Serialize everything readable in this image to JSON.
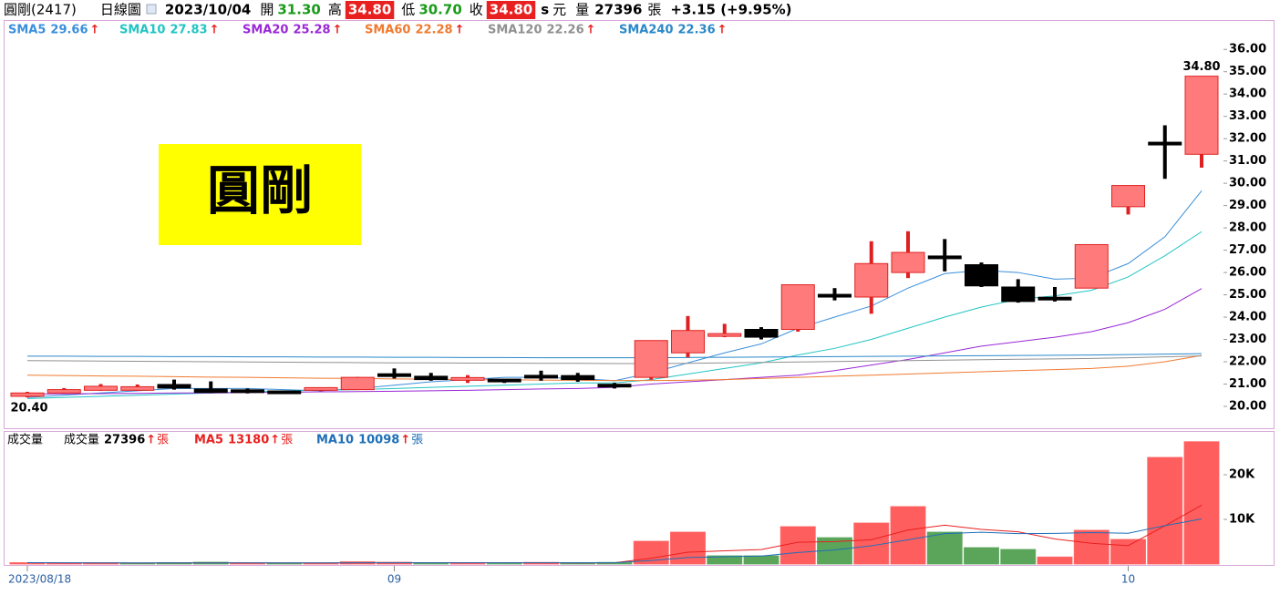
{
  "header": {
    "name": "圓剛(2417)",
    "period": "日線圖",
    "date": "2023/10/04",
    "open_label": "開",
    "open": "31.30",
    "high_label": "高",
    "high": "34.80",
    "low_label": "低",
    "low": "30.70",
    "close_label": "收",
    "close": "34.80",
    "currency_mark": "s",
    "currency": "元",
    "volume_label": "量",
    "volume": "27396",
    "volume_unit": "張",
    "change": "+3.15 (+9.95%)"
  },
  "chart_data": [
    {
      "type": "candlestick",
      "up_color": "#ff7b7b",
      "up_border": "#e02020",
      "down_color": "#000000",
      "trend_marker": "↑",
      "stamp": "圓剛",
      "open": [
        20.45,
        20.6,
        20.72,
        20.72,
        20.98,
        20.78,
        20.7,
        20.65,
        20.7,
        20.75,
        21.42,
        21.35,
        21.2,
        21.18,
        21.35,
        21.38,
        20.95,
        21.3,
        22.4,
        23.12,
        23.45,
        23.45,
        24.98,
        24.9,
        26.0,
        26.7,
        26.35,
        25.35,
        24.85,
        25.3,
        28.95,
        31.8,
        31.3
      ],
      "high": [
        20.65,
        20.82,
        21.0,
        20.98,
        21.2,
        21.12,
        20.8,
        20.68,
        20.84,
        21.32,
        21.7,
        21.5,
        21.4,
        21.2,
        21.6,
        21.5,
        21.05,
        22.95,
        24.05,
        23.7,
        23.55,
        25.45,
        25.3,
        27.4,
        27.85,
        27.5,
        26.45,
        25.7,
        25.35,
        27.25,
        29.9,
        32.6,
        34.8
      ],
      "low": [
        20.4,
        20.58,
        20.7,
        20.7,
        20.75,
        20.6,
        20.58,
        20.6,
        20.68,
        20.74,
        21.25,
        21.15,
        21.05,
        21.05,
        21.15,
        21.1,
        20.8,
        21.2,
        22.2,
        23.1,
        23.0,
        23.35,
        24.75,
        24.15,
        25.75,
        26.05,
        25.35,
        24.65,
        24.7,
        25.3,
        28.6,
        30.2,
        30.7
      ],
      "close": [
        20.6,
        20.75,
        20.9,
        20.88,
        20.82,
        20.62,
        20.65,
        20.63,
        20.8,
        21.3,
        21.32,
        21.2,
        21.25,
        21.08,
        21.28,
        21.2,
        20.88,
        22.95,
        23.4,
        23.22,
        23.1,
        25.45,
        24.95,
        26.4,
        26.9,
        26.65,
        25.4,
        24.7,
        24.8,
        27.25,
        29.9,
        31.75,
        34.8
      ],
      "series": [
        {
          "name": "SMA5",
          "color": "#3a8fdc",
          "values": [
            20.4,
            20.5,
            20.6,
            20.7,
            20.8,
            20.8,
            20.8,
            20.75,
            20.7,
            20.8,
            20.95,
            21.1,
            21.2,
            21.3,
            21.3,
            21.25,
            21.15,
            21.5,
            21.95,
            22.4,
            22.8,
            23.5,
            24.0,
            24.5,
            25.3,
            25.95,
            26.1,
            26.0,
            25.7,
            25.75,
            26.4,
            27.6,
            29.66
          ]
        },
        {
          "name": "SMA10",
          "color": "#22c4c4",
          "values": [
            20.35,
            20.4,
            20.45,
            20.5,
            20.55,
            20.6,
            20.65,
            20.7,
            20.72,
            20.75,
            20.8,
            20.85,
            20.9,
            20.95,
            21.0,
            21.05,
            21.05,
            21.2,
            21.45,
            21.7,
            21.95,
            22.3,
            22.6,
            23.0,
            23.5,
            24.0,
            24.45,
            24.8,
            24.95,
            25.2,
            25.8,
            26.75,
            27.83
          ]
        },
        {
          "name": "SMA20",
          "color": "#9a28d6",
          "values": [
            20.55,
            20.56,
            20.57,
            20.58,
            20.6,
            20.6,
            20.62,
            20.63,
            20.65,
            20.66,
            20.68,
            20.7,
            20.72,
            20.75,
            20.78,
            20.8,
            20.85,
            21.0,
            21.1,
            21.2,
            21.3,
            21.4,
            21.6,
            21.85,
            22.1,
            22.4,
            22.7,
            22.9,
            23.1,
            23.35,
            23.75,
            24.35,
            25.28
          ]
        },
        {
          "name": "SMA60",
          "color": "#f07a30",
          "values": [
            21.4,
            21.38,
            21.36,
            21.35,
            21.33,
            21.31,
            21.3,
            21.28,
            21.26,
            21.25,
            21.23,
            21.22,
            21.2,
            21.19,
            21.18,
            21.17,
            21.16,
            21.16,
            21.17,
            21.2,
            21.25,
            21.3,
            21.35,
            21.4,
            21.45,
            21.5,
            21.55,
            21.6,
            21.65,
            21.7,
            21.8,
            22.0,
            22.28
          ]
        },
        {
          "name": "SMA120",
          "color": "#909090",
          "values": [
            22.05,
            22.04,
            22.03,
            22.02,
            22.01,
            22.0,
            21.99,
            21.98,
            21.97,
            21.96,
            21.95,
            21.95,
            21.94,
            21.94,
            21.93,
            21.93,
            21.92,
            21.92,
            21.93,
            21.95,
            21.97,
            21.99,
            22.01,
            22.03,
            22.05,
            22.07,
            22.09,
            22.11,
            22.13,
            22.15,
            22.18,
            22.22,
            22.26
          ]
        },
        {
          "name": "SMA240",
          "color": "#2a88c8",
          "values": [
            22.25,
            22.25,
            22.24,
            22.24,
            22.23,
            22.23,
            22.22,
            22.22,
            22.21,
            22.21,
            22.2,
            22.2,
            22.19,
            22.19,
            22.18,
            22.18,
            22.18,
            22.18,
            22.19,
            22.2,
            22.21,
            22.22,
            22.23,
            22.24,
            22.25,
            22.26,
            22.27,
            22.28,
            22.29,
            22.3,
            22.32,
            22.34,
            22.36
          ]
        }
      ],
      "high_label": {
        "value": 34.8,
        "label": "34.80"
      },
      "low_label": {
        "value": 20.4,
        "label": "20.40"
      },
      "ylim": [
        19.1,
        36.5
      ],
      "yticks": [
        {
          "value": 20,
          "label": "20.00"
        },
        {
          "value": 21,
          "label": "21.00"
        },
        {
          "value": 22,
          "label": "22.00"
        },
        {
          "value": 23,
          "label": "23.00"
        },
        {
          "value": 24,
          "label": "24.00"
        },
        {
          "value": 25,
          "label": "25.00"
        },
        {
          "value": 26,
          "label": "26.00"
        },
        {
          "value": 27,
          "label": "27.00"
        },
        {
          "value": 28,
          "label": "28.00"
        },
        {
          "value": 29,
          "label": "29.00"
        },
        {
          "value": 30,
          "label": "30.00"
        },
        {
          "value": 31,
          "label": "31.00"
        },
        {
          "value": 32,
          "label": "32.00"
        },
        {
          "value": 33,
          "label": "33.00"
        },
        {
          "value": 34,
          "label": "34.00"
        },
        {
          "value": 35,
          "label": "35.00"
        },
        {
          "value": 36,
          "label": "36.00"
        }
      ]
    },
    {
      "type": "bar",
      "title": "成交量",
      "trend_marker": "↑",
      "unit": "張",
      "categories": [
        "2023/08/18",
        null,
        null,
        null,
        null,
        null,
        null,
        null,
        null,
        null,
        "09",
        null,
        null,
        null,
        null,
        null,
        null,
        null,
        null,
        null,
        null,
        null,
        null,
        null,
        null,
        null,
        null,
        null,
        null,
        null,
        "10",
        null,
        null
      ],
      "series": [
        {
          "name": "成交量",
          "color": "#000000",
          "values": [
            300,
            200,
            250,
            200,
            300,
            400,
            200,
            150,
            200,
            500,
            400,
            250,
            200,
            150,
            350,
            300,
            350,
            5100,
            7140,
            1840,
            1840,
            8370,
            5900,
            9180,
            12860,
            7140,
            3670,
            3270,
            1570,
            7550,
            5510,
            23880,
            27396
          ],
          "colors": [
            "#ff5e5e",
            "#ff5e5e",
            "#ff5e5e",
            "#5aa55a",
            "#5aa55a",
            "#5aa55a",
            "#ff5e5e",
            "#5aa55a",
            "#ff5e5e",
            "#ff5e5e",
            "#ff5e5e",
            "#5aa55a",
            "#ff5e5e",
            "#5aa55a",
            "#ff5e5e",
            "#5aa55a",
            "#5aa55a",
            "#ff5e5e",
            "#ff5e5e",
            "#5aa55a",
            "#5aa55a",
            "#ff5e5e",
            "#5aa55a",
            "#ff5e5e",
            "#ff5e5e",
            "#5aa55a",
            "#5aa55a",
            "#5aa55a",
            "#ff5e5e",
            "#ff5e5e",
            "#ff5e5e",
            "#ff5e5e",
            "#ff5e5e"
          ]
        },
        {
          "name": "MA5",
          "color": "#e82020",
          "values": [
            300,
            250,
            250,
            240,
            250,
            270,
            270,
            250,
            250,
            290,
            290,
            300,
            310,
            300,
            270,
            250,
            270,
            1310,
            2650,
            2950,
            3250,
            4860,
            5020,
            5430,
            7630,
            8690,
            7750,
            7220,
            5610,
            4640,
            4120,
            8560,
            13180
          ]
        },
        {
          "name": "MA10",
          "color": "#1f6fb8",
          "values": [
            300,
            280,
            260,
            250,
            250,
            260,
            260,
            260,
            260,
            270,
            270,
            280,
            280,
            280,
            280,
            280,
            280,
            780,
            1460,
            1620,
            1780,
            2570,
            3170,
            4070,
            5440,
            6810,
            7110,
            6810,
            6860,
            7030,
            6900,
            8600,
            10098
          ]
        }
      ],
      "ylim": [
        0,
        30000
      ],
      "yticks": [
        {
          "value": 10000,
          "label": "10K"
        },
        {
          "value": 20000,
          "label": "20K"
        }
      ]
    }
  ]
}
